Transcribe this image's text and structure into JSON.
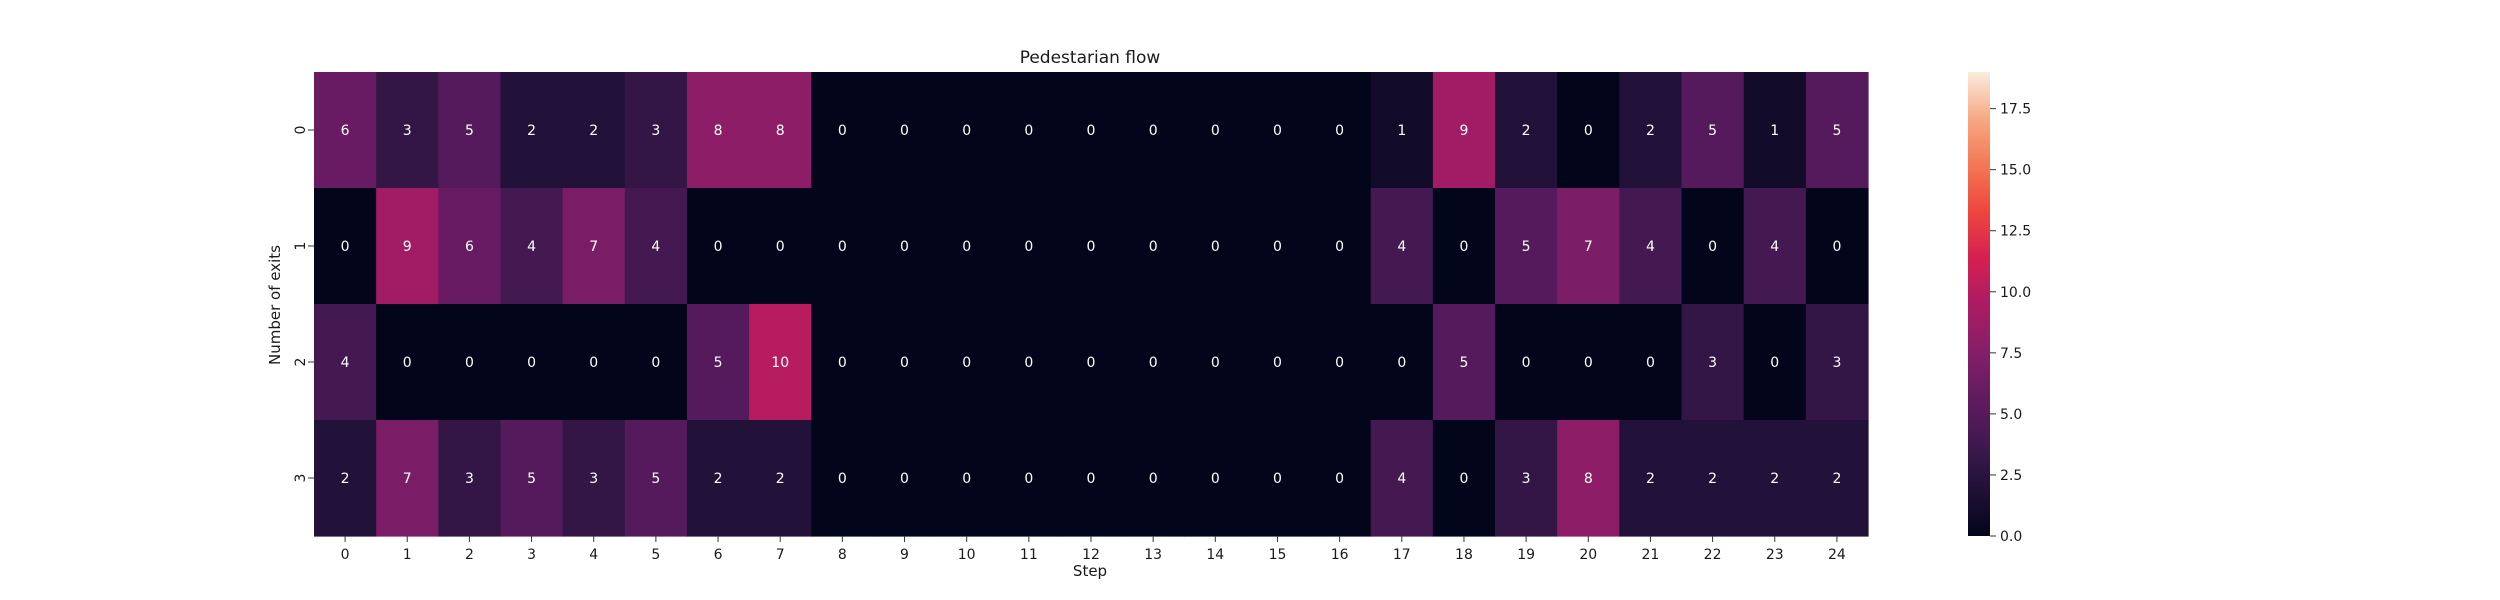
{
  "chart_data": {
    "type": "heatmap",
    "title": "Pedestarian flow",
    "xlabel": "Step",
    "ylabel": "Number of exits",
    "x": [
      "0",
      "1",
      "2",
      "3",
      "4",
      "5",
      "6",
      "7",
      "8",
      "9",
      "10",
      "11",
      "12",
      "13",
      "14",
      "15",
      "16",
      "17",
      "18",
      "19",
      "20",
      "21",
      "22",
      "23",
      "24"
    ],
    "y": [
      "0",
      "1",
      "2",
      "3"
    ],
    "values": [
      [
        6,
        3,
        5,
        2,
        2,
        3,
        8,
        8,
        0,
        0,
        0,
        0,
        0,
        0,
        0,
        0,
        0,
        1,
        9,
        2,
        0,
        2,
        5,
        1,
        5
      ],
      [
        0,
        9,
        6,
        4,
        7,
        4,
        0,
        0,
        0,
        0,
        0,
        0,
        0,
        0,
        0,
        0,
        0,
        4,
        0,
        5,
        7,
        4,
        0,
        4,
        0
      ],
      [
        4,
        0,
        0,
        0,
        0,
        0,
        5,
        10,
        0,
        0,
        0,
        0,
        0,
        0,
        0,
        0,
        0,
        0,
        5,
        0,
        0,
        0,
        3,
        0,
        3
      ],
      [
        2,
        7,
        3,
        5,
        3,
        5,
        2,
        2,
        0,
        0,
        0,
        0,
        0,
        0,
        0,
        0,
        0,
        4,
        0,
        3,
        8,
        2,
        2,
        2,
        2
      ]
    ],
    "colorbar": {
      "min": 0,
      "max": 19,
      "colormap": "rocket",
      "ticks": [
        "0.0",
        "2.5",
        "5.0",
        "7.5",
        "10.0",
        "12.5",
        "15.0",
        "17.5"
      ],
      "tick_values": [
        0,
        2.5,
        5,
        7.5,
        10,
        12.5,
        15,
        17.5
      ]
    }
  }
}
